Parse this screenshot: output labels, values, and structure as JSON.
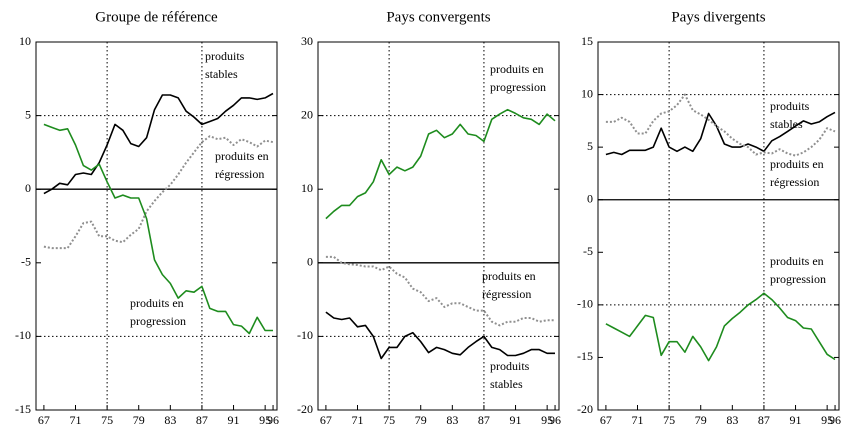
{
  "chart_data": [
    {
      "type": "line",
      "title": "Groupe de référence",
      "x": [
        67,
        68,
        69,
        70,
        71,
        72,
        73,
        74,
        75,
        76,
        77,
        78,
        79,
        80,
        81,
        82,
        83,
        84,
        85,
        86,
        87,
        88,
        89,
        90,
        91,
        92,
        93,
        94,
        95,
        96
      ],
      "xlim": [
        66,
        96.5
      ],
      "xticks": [
        67,
        71,
        75,
        79,
        83,
        87,
        91,
        95,
        96
      ],
      "ylim": [
        -15,
        10
      ],
      "yticks": [
        -15,
        -10,
        -5,
        0,
        5,
        10
      ],
      "grid_y": [
        5,
        -10
      ],
      "grid_x": [
        75,
        87
      ],
      "series": [
        {
          "label_lines": [
            "produits",
            "stables"
          ],
          "color": "#000000",
          "style": "solid",
          "values": [
            -0.3,
            0,
            0.4,
            0.3,
            1,
            1.1,
            1,
            1.8,
            3,
            4.4,
            4,
            3.1,
            2.9,
            3.5,
            5.4,
            6.4,
            6.4,
            6.2,
            5.3,
            4.9,
            4.4,
            4.6,
            4.8,
            5.3,
            5.7,
            6.2,
            6.2,
            6.1,
            6.2,
            6.5
          ]
        },
        {
          "label_lines": [
            "produits en",
            "régression"
          ],
          "color": "#909090",
          "style": "dotted",
          "values": [
            -3.9,
            -4,
            -4,
            -4,
            -3.2,
            -2.3,
            -2.2,
            -3.2,
            -3.2,
            -3.5,
            -3.6,
            -3.1,
            -2.7,
            -1.5,
            -0.8,
            -0.2,
            0.3,
            1,
            1.8,
            2.5,
            3.2,
            3.6,
            3.4,
            3.5,
            3,
            3.4,
            3.2,
            2.9,
            3.3,
            3.2
          ]
        },
        {
          "label_lines": [
            "produits en",
            "progression"
          ],
          "color": "#1e8c1e",
          "style": "solid",
          "values": [
            4.4,
            4.2,
            4,
            4.1,
            3,
            1.6,
            1.3,
            1.7,
            0.5,
            -0.6,
            -0.4,
            -0.6,
            -0.6,
            -2,
            -4.8,
            -5.8,
            -6.4,
            -7.4,
            -6.9,
            -7,
            -6.6,
            -8.1,
            -8.3,
            -8.3,
            -9.2,
            -9.3,
            -9.8,
            -8.7,
            -9.6,
            -9.6
          ]
        }
      ]
    },
    {
      "type": "line",
      "title": "Pays convergents",
      "x": [
        67,
        68,
        69,
        70,
        71,
        72,
        73,
        74,
        75,
        76,
        77,
        78,
        79,
        80,
        81,
        82,
        83,
        84,
        85,
        86,
        87,
        88,
        89,
        90,
        91,
        92,
        93,
        94,
        95,
        96
      ],
      "xlim": [
        66,
        96.5
      ],
      "xticks": [
        67,
        71,
        75,
        79,
        83,
        87,
        91,
        95,
        96
      ],
      "ylim": [
        -20,
        30
      ],
      "yticks": [
        -20,
        -10,
        0,
        10,
        20,
        30
      ],
      "grid_y": [
        20,
        -10
      ],
      "grid_x": [
        75,
        87
      ],
      "series": [
        {
          "label_lines": [
            "produits en",
            "progression"
          ],
          "color": "#1e8c1e",
          "style": "solid",
          "values": [
            6,
            7,
            7.8,
            7.8,
            9,
            9.5,
            11,
            14,
            12,
            13,
            12.5,
            13,
            14.5,
            17.5,
            18,
            17,
            17.5,
            18.8,
            17.5,
            17.3,
            16.5,
            19.5,
            20.2,
            20.8,
            20.3,
            19.7,
            19.5,
            18.8,
            20.2,
            19.3
          ]
        },
        {
          "label_lines": [
            "produits en",
            "régression"
          ],
          "color": "#909090",
          "style": "dotted",
          "values": [
            0.8,
            0.8,
            0,
            -0.2,
            -0.3,
            -0.5,
            -0.5,
            -1,
            -0.5,
            -1.5,
            -2,
            -3.5,
            -4,
            -5.2,
            -4.8,
            -6,
            -5.5,
            -5.5,
            -6,
            -6.5,
            -6.5,
            -8,
            -8.5,
            -8,
            -8,
            -7.5,
            -7.5,
            -8,
            -7.8,
            -7.8
          ]
        },
        {
          "label_lines": [
            "produits",
            "stables"
          ],
          "color": "#000000",
          "style": "solid",
          "values": [
            -6.7,
            -7.5,
            -7.7,
            -7.5,
            -8.7,
            -8.5,
            -10,
            -13,
            -11.5,
            -11.5,
            -10,
            -9.5,
            -10.7,
            -12.2,
            -11.5,
            -11.8,
            -12.3,
            -12.5,
            -11.5,
            -10.7,
            -10,
            -11.5,
            -11.8,
            -12.6,
            -12.6,
            -12.3,
            -11.8,
            -11.8,
            -12.3,
            -12.3
          ]
        }
      ]
    },
    {
      "type": "line",
      "title": "Pays divergents",
      "x": [
        67,
        68,
        69,
        70,
        71,
        72,
        73,
        74,
        75,
        76,
        77,
        78,
        79,
        80,
        81,
        82,
        83,
        84,
        85,
        86,
        87,
        88,
        89,
        90,
        91,
        92,
        93,
        94,
        95,
        96
      ],
      "xlim": [
        66,
        96.5
      ],
      "xticks": [
        67,
        71,
        75,
        79,
        83,
        87,
        91,
        95,
        96
      ],
      "ylim": [
        -20,
        15
      ],
      "yticks": [
        -20,
        -15,
        -10,
        -5,
        0,
        5,
        10,
        15
      ],
      "grid_y": [
        10,
        -10
      ],
      "grid_x": [
        75,
        87
      ],
      "series": [
        {
          "label_lines": [
            "produits",
            "stables"
          ],
          "color": "#000000",
          "style": "solid",
          "values": [
            4.3,
            4.5,
            4.3,
            4.7,
            4.7,
            4.7,
            5,
            6.8,
            5,
            4.6,
            5,
            4.6,
            5.8,
            8.2,
            7,
            5.3,
            5,
            5,
            5.3,
            5,
            4.6,
            5.6,
            6,
            6.5,
            7,
            7.5,
            7.2,
            7.4,
            7.9,
            8.3
          ]
        },
        {
          "label_lines": [
            "produits en",
            "régression"
          ],
          "color": "#909090",
          "style": "dotted",
          "values": [
            7.4,
            7.4,
            7.8,
            7.4,
            6.3,
            6.3,
            7.5,
            8.2,
            8.4,
            9,
            10,
            8.5,
            8.1,
            7.6,
            7,
            6.5,
            5.8,
            5.3,
            5,
            4.3,
            4.5,
            4.4,
            4.8,
            4.4,
            4.2,
            4.5,
            5,
            5.7,
            6.8,
            6.5
          ]
        },
        {
          "label_lines": [
            "produits en",
            "progression"
          ],
          "color": "#1e8c1e",
          "style": "solid",
          "values": [
            -11.8,
            -12.2,
            -12.6,
            -13,
            -12,
            -11,
            -11.2,
            -14.8,
            -13.5,
            -13.5,
            -14.5,
            -13,
            -14,
            -15.3,
            -14,
            -12,
            -11.3,
            -10.7,
            -10,
            -9.5,
            -8.9,
            -9.5,
            -10.3,
            -11.2,
            -11.5,
            -12.2,
            -12.3,
            -13.5,
            -14.7,
            -15.2
          ]
        }
      ]
    }
  ]
}
